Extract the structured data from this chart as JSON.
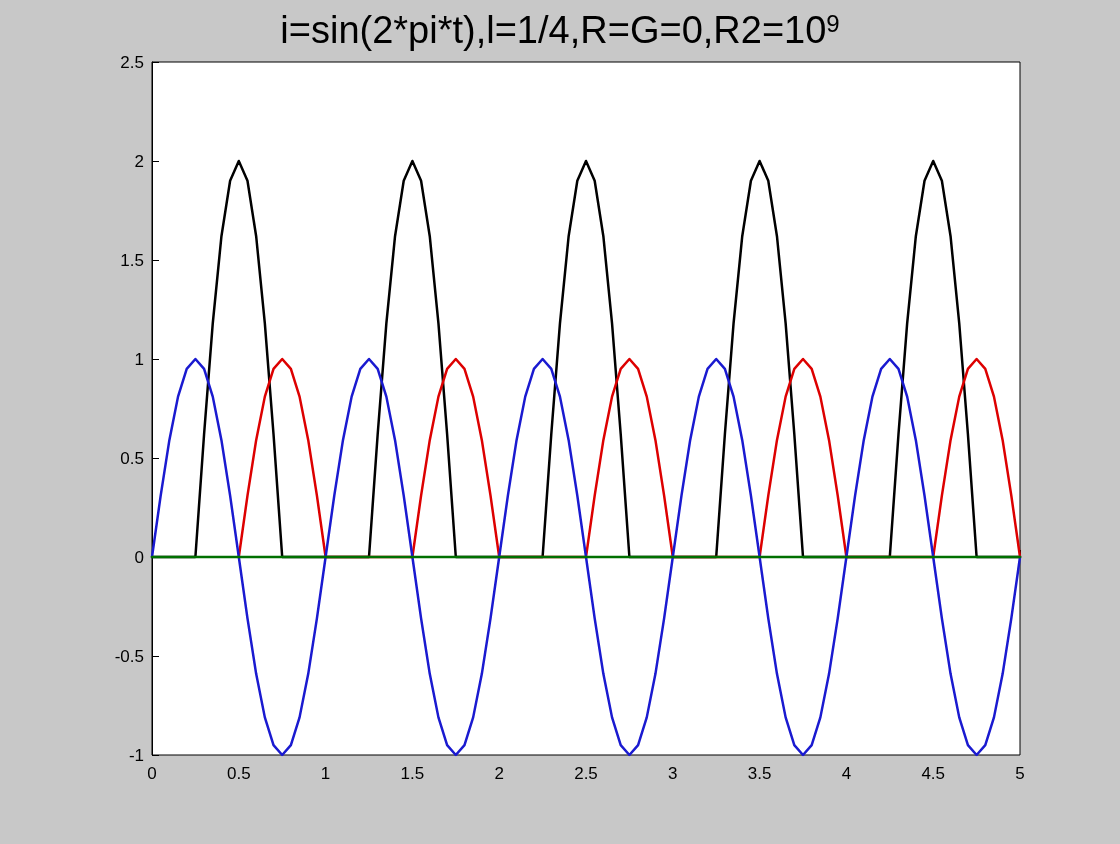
{
  "chart_data": {
    "type": "line",
    "title": "i=sin(2*pi*t),l=1/4,R=G=0,R2=10$^{9}$",
    "x": [
      0,
      0.05,
      0.1,
      0.15,
      0.2,
      0.25,
      0.3,
      0.35,
      0.4,
      0.45,
      0.5,
      0.55,
      0.6,
      0.65,
      0.7,
      0.75,
      0.8,
      0.85,
      0.9,
      0.95,
      1,
      1.05,
      1.1,
      1.15,
      1.2,
      1.25,
      1.3,
      1.35,
      1.4,
      1.45,
      1.5,
      1.55,
      1.6,
      1.65,
      1.7,
      1.75,
      1.8,
      1.85,
      1.9,
      1.95,
      2,
      2.05,
      2.1,
      2.15,
      2.2,
      2.25,
      2.3,
      2.35,
      2.4,
      2.45,
      2.5,
      2.55,
      2.6,
      2.65,
      2.7,
      2.75,
      2.8,
      2.85,
      2.9,
      2.95,
      3,
      3.05,
      3.1,
      3.15,
      3.2,
      3.25,
      3.3,
      3.35,
      3.4,
      3.45,
      3.5,
      3.55,
      3.6,
      3.65,
      3.7,
      3.75,
      3.8,
      3.85,
      3.9,
      3.95,
      4,
      4.05,
      4.1,
      4.15,
      4.2,
      4.25,
      4.3,
      4.35,
      4.4,
      4.45,
      4.5,
      4.55,
      4.6,
      4.65,
      4.7,
      4.75,
      4.8,
      4.85,
      4.9,
      4.95,
      5
    ],
    "series": [
      {
        "color": "#000000",
        "values": [
          0,
          0,
          0,
          0,
          0,
          0,
          0.62,
          1.18,
          1.62,
          1.9,
          2,
          1.9,
          1.62,
          1.18,
          0.62,
          0,
          0,
          0,
          0,
          0,
          0,
          0,
          0,
          0,
          0,
          0,
          0.62,
          1.18,
          1.62,
          1.9,
          2,
          1.9,
          1.62,
          1.18,
          0.62,
          0,
          0,
          0,
          0,
          0,
          0,
          0,
          0,
          0,
          0,
          0,
          0.62,
          1.18,
          1.62,
          1.9,
          2,
          1.9,
          1.62,
          1.18,
          0.62,
          0,
          0,
          0,
          0,
          0,
          0,
          0,
          0,
          0,
          0,
          0,
          0.62,
          1.18,
          1.62,
          1.9,
          2,
          1.9,
          1.62,
          1.18,
          0.62,
          0,
          0,
          0,
          0,
          0,
          0,
          0,
          0,
          0,
          0,
          0,
          0.62,
          1.18,
          1.62,
          1.9,
          2,
          1.9,
          1.62,
          1.18,
          0.62,
          0,
          0,
          0,
          0,
          0,
          0
        ]
      },
      {
        "color": "#dd0000",
        "values": [
          null,
          null,
          null,
          null,
          null,
          null,
          null,
          null,
          null,
          null,
          0,
          0.31,
          0.59,
          0.81,
          0.95,
          1,
          0.95,
          0.81,
          0.59,
          0.31,
          0,
          0,
          0,
          0,
          0,
          0,
          0,
          0,
          0,
          0,
          0,
          0.31,
          0.59,
          0.81,
          0.95,
          1,
          0.95,
          0.81,
          0.59,
          0.31,
          0,
          0,
          0,
          0,
          0,
          0,
          0,
          0,
          0,
          0,
          0,
          0.31,
          0.59,
          0.81,
          0.95,
          1,
          0.95,
          0.81,
          0.59,
          0.31,
          0,
          0,
          0,
          0,
          0,
          0,
          0,
          0,
          0,
          0,
          0,
          0.31,
          0.59,
          0.81,
          0.95,
          1,
          0.95,
          0.81,
          0.59,
          0.31,
          0,
          0,
          0,
          0,
          0,
          0,
          0,
          0,
          0,
          0,
          0,
          0.31,
          0.59,
          0.81,
          0.95,
          1,
          0.95,
          0.81,
          0.59,
          0.31,
          0
        ]
      },
      {
        "color": "#1a1ad0",
        "values": [
          0,
          0.31,
          0.59,
          0.81,
          0.95,
          1,
          0.95,
          0.81,
          0.59,
          0.31,
          0,
          -0.31,
          -0.59,
          -0.81,
          -0.95,
          -1,
          -0.95,
          -0.81,
          -0.59,
          -0.31,
          0,
          0.31,
          0.59,
          0.81,
          0.95,
          1,
          0.95,
          0.81,
          0.59,
          0.31,
          0,
          -0.31,
          -0.59,
          -0.81,
          -0.95,
          -1,
          -0.95,
          -0.81,
          -0.59,
          -0.31,
          0,
          0.31,
          0.59,
          0.81,
          0.95,
          1,
          0.95,
          0.81,
          0.59,
          0.31,
          0,
          -0.31,
          -0.59,
          -0.81,
          -0.95,
          -1,
          -0.95,
          -0.81,
          -0.59,
          -0.31,
          0,
          0.31,
          0.59,
          0.81,
          0.95,
          1,
          0.95,
          0.81,
          0.59,
          0.31,
          0,
          -0.31,
          -0.59,
          -0.81,
          -0.95,
          -1,
          -0.95,
          -0.81,
          -0.59,
          -0.31,
          0,
          0.31,
          0.59,
          0.81,
          0.95,
          1,
          0.95,
          0.81,
          0.59,
          0.31,
          0,
          -0.31,
          -0.59,
          -0.81,
          -0.95,
          -1,
          -0.95,
          -0.81,
          -0.59,
          -0.31,
          0
        ]
      },
      {
        "color": "#007000",
        "x": [
          0,
          5
        ],
        "values": [
          0,
          0
        ]
      }
    ],
    "xlim": [
      0,
      5
    ],
    "xticks": [
      0,
      0.5,
      1,
      1.5,
      2,
      2.5,
      3,
      3.5,
      4,
      4.5,
      5
    ],
    "ylim": [
      -1,
      2.5
    ],
    "yticks": [
      -1,
      -0.5,
      0,
      0.5,
      1,
      1.5,
      2,
      2.5
    ],
    "grid": false,
    "marker": "none",
    "line_style": "solid"
  }
}
